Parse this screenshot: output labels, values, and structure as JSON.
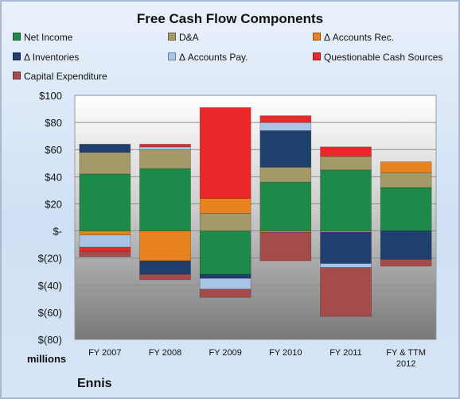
{
  "chart_data": {
    "type": "bar",
    "stacked": true,
    "title": "Free Cash Flow Components",
    "categories": [
      "FY 2007",
      "FY 2008",
      "FY 2009",
      "FY 2010",
      "FY 2011",
      "FY & TTM 2012"
    ],
    "ylim": [
      -80,
      100
    ],
    "yticks": [
      100,
      80,
      60,
      40,
      20,
      0,
      -20,
      -40,
      -60,
      -80
    ],
    "ytick_labels": [
      "$100",
      "$80",
      "$60",
      "$40",
      "$20",
      "$-",
      "$(20)",
      "$(40)",
      "$(60)",
      "$(80)"
    ],
    "units": "millions",
    "legend_position": "top",
    "series": [
      {
        "name": "Net Income",
        "color": "#1e8a4a",
        "values": [
          42,
          46,
          -32,
          36,
          45,
          32
        ]
      },
      {
        "name": "D&A",
        "color": "#a39969",
        "values": [
          16,
          14,
          13,
          11,
          10,
          11
        ]
      },
      {
        "name": "Δ Accounts Rec.",
        "color": "#e8821f",
        "values": [
          -3,
          -22,
          11,
          -1,
          -1,
          8
        ]
      },
      {
        "name": "Δ Inventories",
        "color": "#1f3f6e",
        "values": [
          6,
          -10,
          -3,
          27,
          -23,
          -21
        ]
      },
      {
        "name": "Δ Accounts Pay.",
        "color": "#a8c4e6",
        "values": [
          -9,
          2,
          -8,
          6,
          -3,
          0
        ]
      },
      {
        "name": "Questionable Cash Sources",
        "color": "#e8282a",
        "values": [
          -3,
          2,
          67,
          5,
          7,
          0
        ]
      },
      {
        "name": "Capital Expenditure",
        "color": "#a54b4b",
        "values": [
          -4,
          -4,
          -6,
          -21,
          -36,
          -5
        ]
      }
    ]
  },
  "company": "Ennis"
}
